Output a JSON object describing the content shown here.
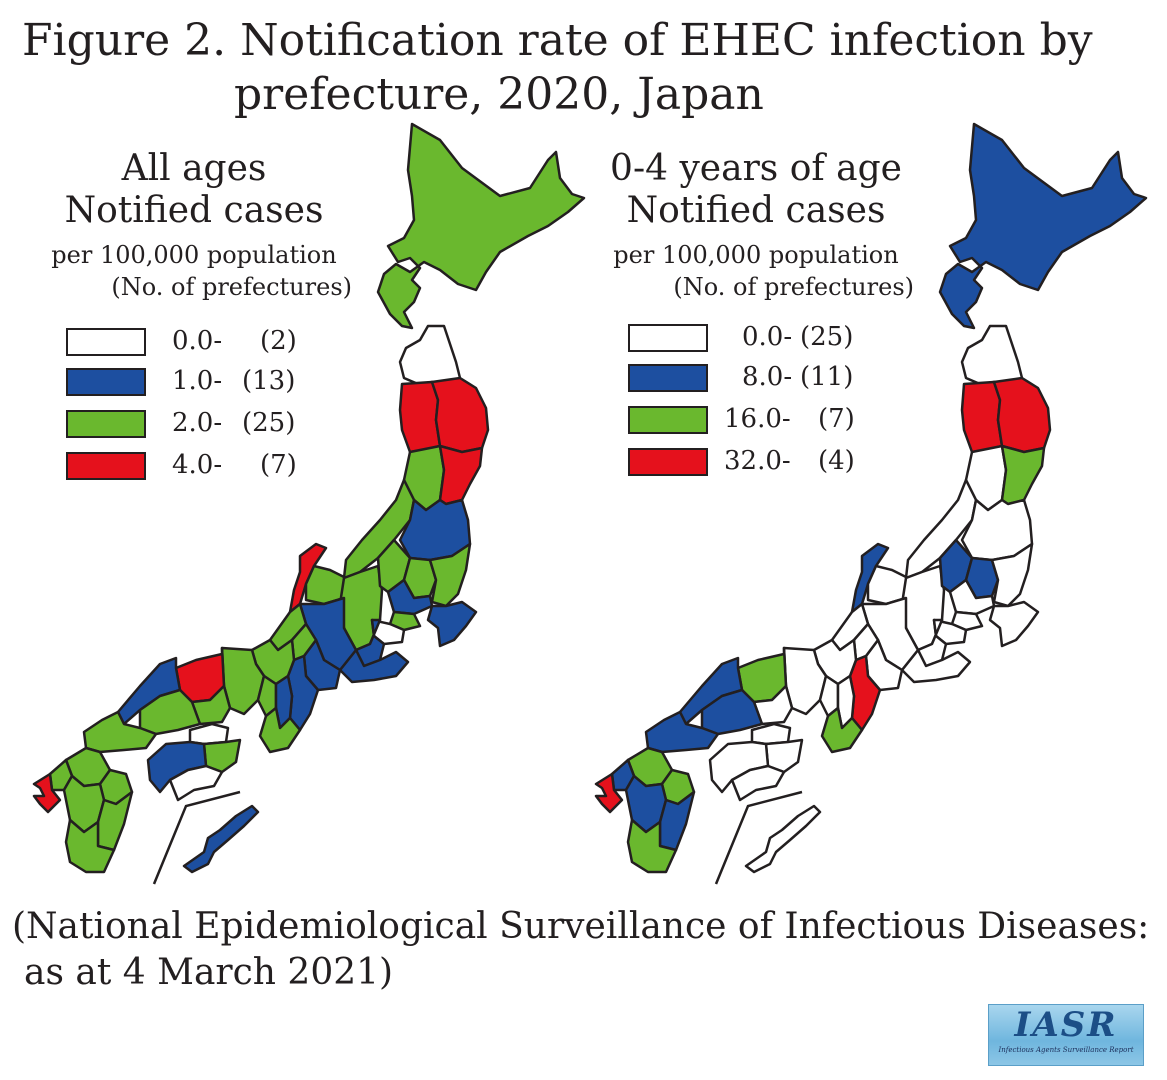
{
  "figure": {
    "title_line1": "Figure 2. Notification rate of EHEC infection by",
    "title_line2": "prefecture, 2020, Japan"
  },
  "left_panel": {
    "heading1": "All ages",
    "heading2": "Notified cases",
    "heading3": "per 100,000 population",
    "heading4": "(No. of prefectures)",
    "legend": [
      {
        "value": "0.0-",
        "count": "(2)",
        "color": "#ffffff"
      },
      {
        "value": "1.0-",
        "count": "(13)",
        "color": "#1d4fa0"
      },
      {
        "value": "2.0-",
        "count": "(25)",
        "color": "#6ab82e"
      },
      {
        "value": "4.0-",
        "count": "(7)",
        "color": "#e5111c"
      }
    ]
  },
  "right_panel": {
    "heading1": "0-4 years of age",
    "heading2": "Notified cases",
    "heading3": "per 100,000 population",
    "heading4": "(No. of prefectures)",
    "legend": [
      {
        "value": "0.0-",
        "count": "(25)",
        "color": "#ffffff"
      },
      {
        "value": "8.0-",
        "count": "(11)",
        "color": "#1d4fa0"
      },
      {
        "value": "16.0-",
        "count": "(7)",
        "color": "#6ab82e"
      },
      {
        "value": "32.0-",
        "count": "(4)",
        "color": "#e5111c"
      }
    ]
  },
  "source": {
    "line1": "(National Epidemiological Surveillance of Infectious Diseases:",
    "line2": "as at 4 March 2021)"
  },
  "logo": {
    "text": "IASR",
    "subtext": "Infectious Agents Surveillance Report"
  },
  "colors": {
    "white": "#ffffff",
    "blue": "#1d4fa0",
    "green": "#6ab82e",
    "red": "#e5111c",
    "outline": "#231f20"
  }
}
